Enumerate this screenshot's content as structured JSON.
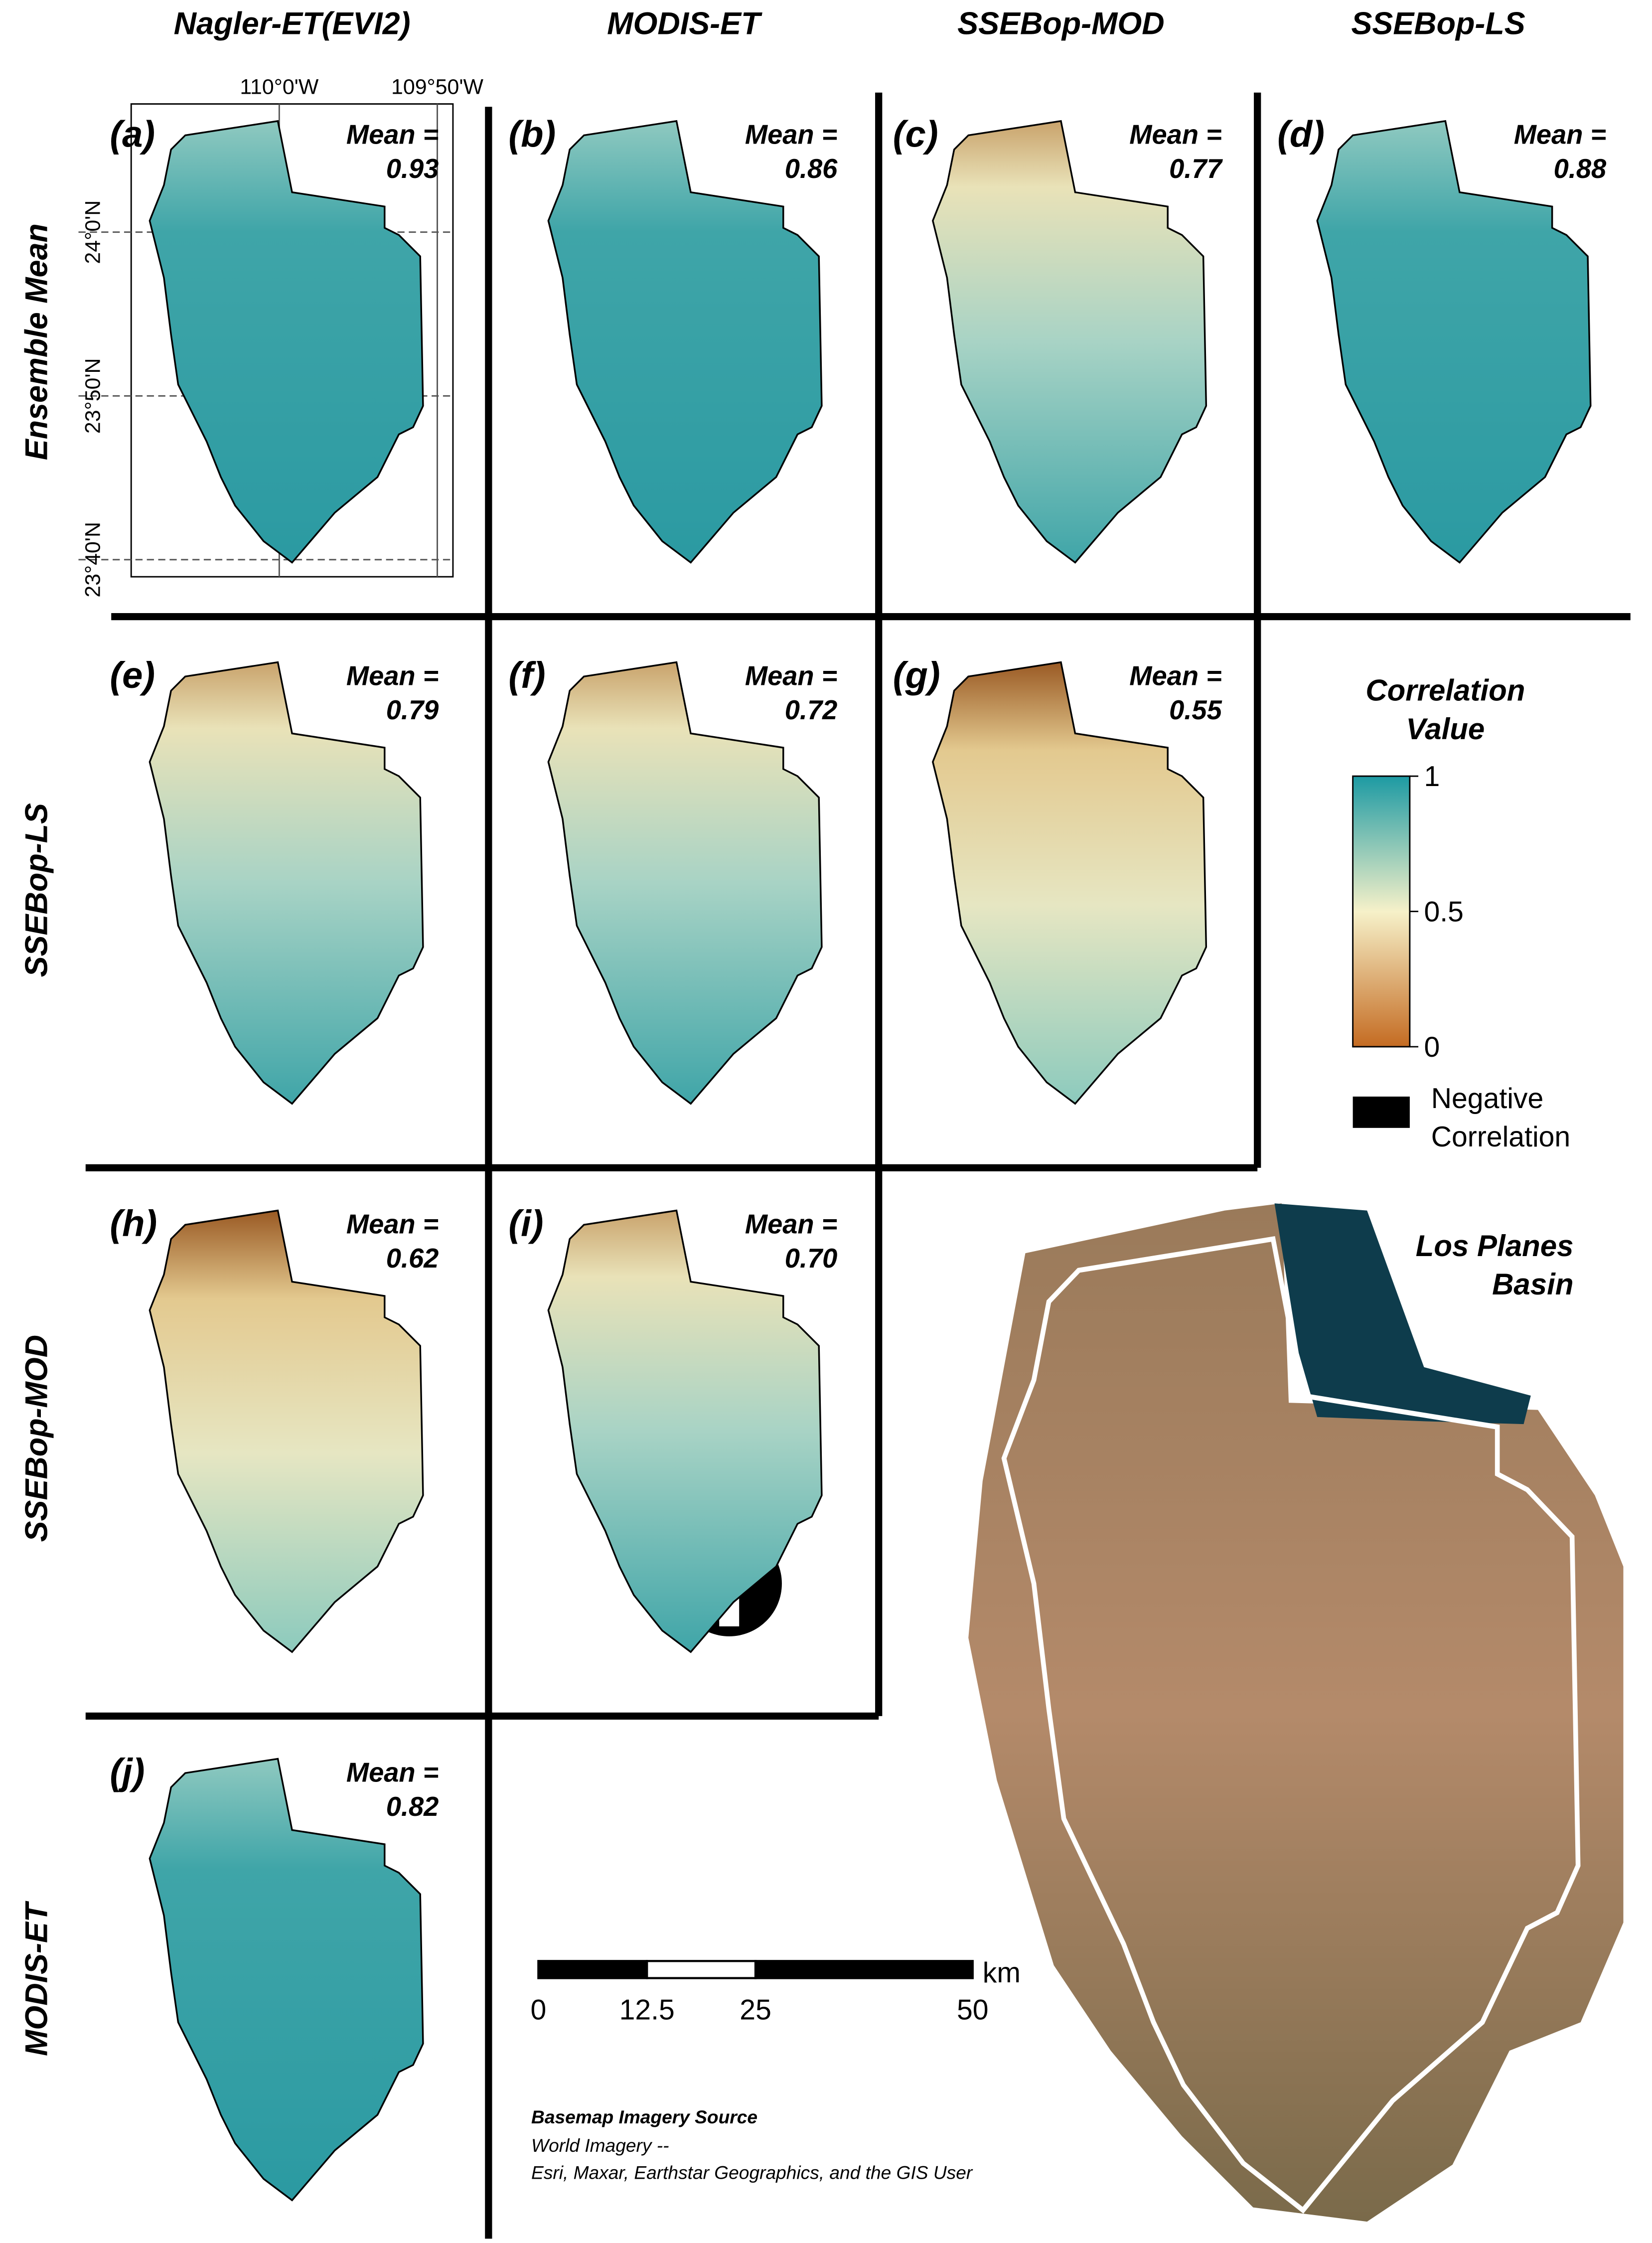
{
  "columns": [
    "Nagler-ET(EVI2)",
    "MODIS-ET",
    "SSEBop-MOD",
    "SSEBop-LS"
  ],
  "rows": [
    "Ensemble Mean",
    "SSEBop-LS",
    "SSEBop-MOD",
    "MODIS-ET"
  ],
  "mean_label": "Mean =",
  "panels": [
    {
      "label": "(a)",
      "mean": 0.93
    },
    {
      "label": "(b)",
      "mean": 0.86
    },
    {
      "label": "(c)",
      "mean": 0.77
    },
    {
      "label": "(d)",
      "mean": 0.88
    },
    {
      "label": "(e)",
      "mean": 0.79
    },
    {
      "label": "(f)",
      "mean": 0.72
    },
    {
      "label": "(g)",
      "mean": 0.55
    },
    {
      "label": "(h)",
      "mean": 0.62
    },
    {
      "label": "(i)",
      "mean": {
        "value": 0.7,
        "label": "0.70"
      }
    },
    {
      "label": "(j)",
      "mean": 0.82
    }
  ],
  "coordinates": {
    "lon": [
      "110°0'W",
      "109°50'W"
    ],
    "lat": [
      "24°0'N",
      "23°50'N",
      "23°40'N"
    ]
  },
  "legend": {
    "title": [
      "Correlation",
      "Value"
    ],
    "ticks": [
      1,
      0.5,
      0
    ],
    "negative": [
      "Negative",
      "Correlation"
    ]
  },
  "scale_bar": {
    "ticks": [
      0,
      12.5,
      25,
      50
    ],
    "unit": "km"
  },
  "source": {
    "title": "Basemap Imagery Source",
    "lines": [
      "World Imagery --",
      "Esri, Maxar, Earthstar Geographics, and the GIS User"
    ]
  },
  "inset_title": [
    "Los Planes",
    "Basin"
  ]
}
